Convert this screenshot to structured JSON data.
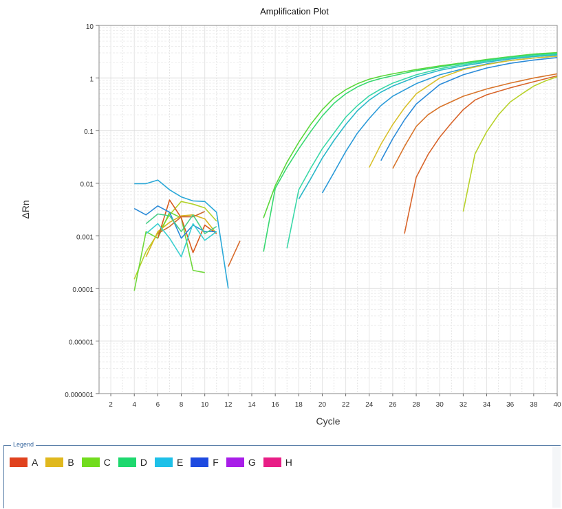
{
  "chart_data": {
    "type": "line",
    "title": "Amplification Plot",
    "xlabel": "Cycle",
    "ylabel": "ΔRn",
    "xlim": [
      1,
      40
    ],
    "ylim": [
      1e-06,
      10
    ],
    "yscale": "log",
    "grid": true,
    "x_ticks": [
      2,
      4,
      6,
      8,
      10,
      12,
      14,
      16,
      18,
      20,
      22,
      24,
      26,
      28,
      30,
      32,
      34,
      36,
      38,
      40
    ],
    "y_ticks": [
      {
        "value": 10,
        "label": "10"
      },
      {
        "value": 1,
        "label": "1"
      },
      {
        "value": 0.1,
        "label": "0.1"
      },
      {
        "value": 0.01,
        "label": "0.01"
      },
      {
        "value": 0.001,
        "label": "0.001"
      },
      {
        "value": 0.0001,
        "label": "0.0001"
      },
      {
        "value": 1e-05,
        "label": "0.00001"
      },
      {
        "value": 1e-06,
        "label": "0.000001"
      }
    ],
    "series": [
      {
        "color": "#b2d22a",
        "points": [
          [
            4,
            0.00015
          ],
          [
            5,
            0.0005
          ],
          [
            6,
            0.0011
          ],
          [
            7,
            0.0025
          ],
          [
            8,
            0.0045
          ],
          [
            9,
            0.004
          ],
          [
            10,
            0.0034
          ],
          [
            11,
            0.0019
          ]
        ]
      },
      {
        "color": "#6fd83a",
        "points": [
          [
            4,
            9e-05
          ],
          [
            5,
            0.0012
          ],
          [
            6,
            0.0009
          ],
          [
            7,
            0.0028
          ],
          [
            8,
            0.0022
          ],
          [
            9,
            0.00022
          ],
          [
            10,
            0.0002
          ]
        ]
      },
      {
        "color": "#d8b41e",
        "points": [
          [
            5,
            0.0004
          ],
          [
            6,
            0.0012
          ],
          [
            7,
            0.0018
          ],
          [
            8,
            0.0024
          ],
          [
            9,
            0.0025
          ],
          [
            10,
            0.0021
          ],
          [
            11,
            0.0011
          ]
        ]
      },
      {
        "color": "#d85a1e",
        "points": [
          [
            6,
            0.0009
          ],
          [
            7,
            0.0048
          ],
          [
            8,
            0.0022
          ],
          [
            9,
            0.00048
          ],
          [
            10,
            0.0016
          ],
          [
            11,
            0.0011
          ]
        ]
      },
      {
        "color": "#cc6a30",
        "points": [
          [
            6,
            0.0011
          ],
          [
            7,
            0.0015
          ],
          [
            8,
            0.0023
          ],
          [
            9,
            0.0023
          ],
          [
            10,
            0.0029
          ]
        ]
      },
      {
        "color": "#2aa8d8",
        "points": [
          [
            4,
            0.0098
          ],
          [
            5,
            0.0098
          ],
          [
            6,
            0.0115
          ],
          [
            7,
            0.0075
          ],
          [
            8,
            0.0055
          ],
          [
            9,
            0.0046
          ],
          [
            10,
            0.0045
          ],
          [
            11,
            0.0028
          ],
          [
            12,
            0.0001
          ]
        ]
      },
      {
        "color": "#2a8ad8",
        "points": [
          [
            4,
            0.0033
          ],
          [
            5,
            0.0025
          ],
          [
            6,
            0.0037
          ],
          [
            7,
            0.0028
          ],
          [
            8,
            0.0009
          ],
          [
            9,
            0.0016
          ],
          [
            10,
            0.0012
          ],
          [
            11,
            0.0012
          ]
        ]
      },
      {
        "color": "#3acfd0",
        "points": [
          [
            5,
            0.0011
          ],
          [
            6,
            0.0017
          ],
          [
            7,
            0.0009
          ],
          [
            8,
            0.0004
          ],
          [
            9,
            0.0017
          ],
          [
            10,
            0.00082
          ],
          [
            11,
            0.0012
          ]
        ]
      },
      {
        "color": "#4acf8a",
        "points": [
          [
            5,
            0.0017
          ],
          [
            6,
            0.0026
          ],
          [
            7,
            0.0024
          ],
          [
            8,
            0.0012
          ],
          [
            9,
            0.0025
          ],
          [
            10,
            0.0011
          ],
          [
            11,
            0.0015
          ]
        ]
      },
      {
        "color": "#d86a2a",
        "points": [
          [
            12,
            0.00026
          ],
          [
            13,
            0.0008
          ]
        ]
      },
      {
        "color": "#5ad83a",
        "points": [
          [
            15,
            0.0022
          ],
          [
            16,
            0.009
          ],
          [
            17,
            0.025
          ],
          [
            18,
            0.06
          ],
          [
            19,
            0.13
          ],
          [
            20,
            0.25
          ],
          [
            21,
            0.42
          ],
          [
            22,
            0.6
          ],
          [
            23,
            0.78
          ],
          [
            24,
            0.95
          ],
          [
            25,
            1.08
          ],
          [
            26,
            1.2
          ],
          [
            28,
            1.45
          ],
          [
            30,
            1.7
          ],
          [
            32,
            1.95
          ],
          [
            34,
            2.25
          ],
          [
            36,
            2.55
          ],
          [
            38,
            2.85
          ],
          [
            40,
            3.05
          ]
        ]
      },
      {
        "color": "#38d870",
        "points": [
          [
            15,
            0.0005
          ],
          [
            16,
            0.008
          ],
          [
            17,
            0.02
          ],
          [
            18,
            0.045
          ],
          [
            19,
            0.095
          ],
          [
            20,
            0.19
          ],
          [
            21,
            0.33
          ],
          [
            22,
            0.5
          ],
          [
            23,
            0.68
          ],
          [
            24,
            0.85
          ],
          [
            25,
            0.98
          ],
          [
            26,
            1.1
          ],
          [
            28,
            1.38
          ],
          [
            30,
            1.62
          ],
          [
            32,
            1.9
          ],
          [
            34,
            2.2
          ],
          [
            36,
            2.5
          ],
          [
            38,
            2.78
          ],
          [
            40,
            2.95
          ]
        ]
      },
      {
        "color": "#3ad8a8",
        "points": [
          [
            17,
            0.00058
          ],
          [
            18,
            0.0075
          ],
          [
            19,
            0.019
          ],
          [
            20,
            0.045
          ],
          [
            21,
            0.09
          ],
          [
            22,
            0.18
          ],
          [
            23,
            0.3
          ],
          [
            24,
            0.46
          ],
          [
            25,
            0.62
          ],
          [
            26,
            0.8
          ],
          [
            28,
            1.15
          ],
          [
            30,
            1.5
          ],
          [
            32,
            1.8
          ],
          [
            34,
            2.1
          ],
          [
            36,
            2.4
          ],
          [
            38,
            2.65
          ],
          [
            40,
            2.85
          ]
        ]
      },
      {
        "color": "#2ab8c8",
        "points": [
          [
            18,
            0.005
          ],
          [
            19,
            0.012
          ],
          [
            20,
            0.03
          ],
          [
            21,
            0.065
          ],
          [
            22,
            0.13
          ],
          [
            23,
            0.24
          ],
          [
            24,
            0.38
          ],
          [
            25,
            0.54
          ],
          [
            26,
            0.7
          ],
          [
            28,
            1.05
          ],
          [
            30,
            1.4
          ],
          [
            32,
            1.7
          ],
          [
            34,
            2.0
          ],
          [
            36,
            2.3
          ],
          [
            38,
            2.55
          ],
          [
            40,
            2.75
          ]
        ]
      },
      {
        "color": "#2a9ad8",
        "points": [
          [
            20,
            0.0065
          ],
          [
            21,
            0.016
          ],
          [
            22,
            0.04
          ],
          [
            23,
            0.09
          ],
          [
            24,
            0.17
          ],
          [
            25,
            0.3
          ],
          [
            26,
            0.45
          ],
          [
            28,
            0.78
          ],
          [
            30,
            1.15
          ],
          [
            32,
            1.5
          ],
          [
            34,
            1.85
          ],
          [
            36,
            2.15
          ],
          [
            38,
            2.4
          ],
          [
            40,
            2.6
          ]
        ]
      },
      {
        "color": "#d8c02a",
        "points": [
          [
            24,
            0.02
          ],
          [
            25,
            0.055
          ],
          [
            26,
            0.13
          ],
          [
            27,
            0.27
          ],
          [
            28,
            0.5
          ],
          [
            30,
            1.0
          ],
          [
            32,
            1.45
          ],
          [
            34,
            1.8
          ],
          [
            36,
            2.15
          ],
          [
            38,
            2.4
          ],
          [
            40,
            2.6
          ]
        ]
      },
      {
        "color": "#2a8ad8",
        "points": [
          [
            25,
            0.027
          ],
          [
            26,
            0.07
          ],
          [
            27,
            0.16
          ],
          [
            28,
            0.32
          ],
          [
            30,
            0.75
          ],
          [
            32,
            1.15
          ],
          [
            34,
            1.55
          ],
          [
            36,
            1.9
          ],
          [
            38,
            2.2
          ],
          [
            40,
            2.45
          ]
        ]
      },
      {
        "color": "#d8742a",
        "points": [
          [
            26,
            0.019
          ],
          [
            27,
            0.05
          ],
          [
            28,
            0.12
          ],
          [
            29,
            0.2
          ],
          [
            30,
            0.28
          ],
          [
            32,
            0.45
          ],
          [
            34,
            0.62
          ],
          [
            36,
            0.8
          ],
          [
            38,
            1.0
          ],
          [
            40,
            1.2
          ]
        ]
      },
      {
        "color": "#d8642a",
        "points": [
          [
            27,
            0.0011
          ],
          [
            28,
            0.013
          ],
          [
            29,
            0.035
          ],
          [
            30,
            0.075
          ],
          [
            31,
            0.14
          ],
          [
            32,
            0.25
          ],
          [
            33,
            0.38
          ],
          [
            34,
            0.48
          ],
          [
            36,
            0.65
          ],
          [
            38,
            0.85
          ],
          [
            40,
            1.1
          ]
        ]
      },
      {
        "color": "#b8d22a",
        "points": [
          [
            32,
            0.0029
          ],
          [
            33,
            0.036
          ],
          [
            34,
            0.095
          ],
          [
            35,
            0.2
          ],
          [
            36,
            0.35
          ],
          [
            37,
            0.5
          ],
          [
            38,
            0.7
          ],
          [
            39,
            0.88
          ],
          [
            40,
            1.05
          ]
        ]
      }
    ]
  },
  "legend": {
    "title": "Legend",
    "items": [
      {
        "label": "A",
        "color": "#e0421e"
      },
      {
        "label": "B",
        "color": "#e0b81e"
      },
      {
        "label": "C",
        "color": "#72dc1e"
      },
      {
        "label": "D",
        "color": "#1ed86e"
      },
      {
        "label": "E",
        "color": "#1ec0e8"
      },
      {
        "label": "F",
        "color": "#1e4ae0"
      },
      {
        "label": "G",
        "color": "#a81ee8"
      },
      {
        "label": "H",
        "color": "#e81e86"
      }
    ]
  }
}
